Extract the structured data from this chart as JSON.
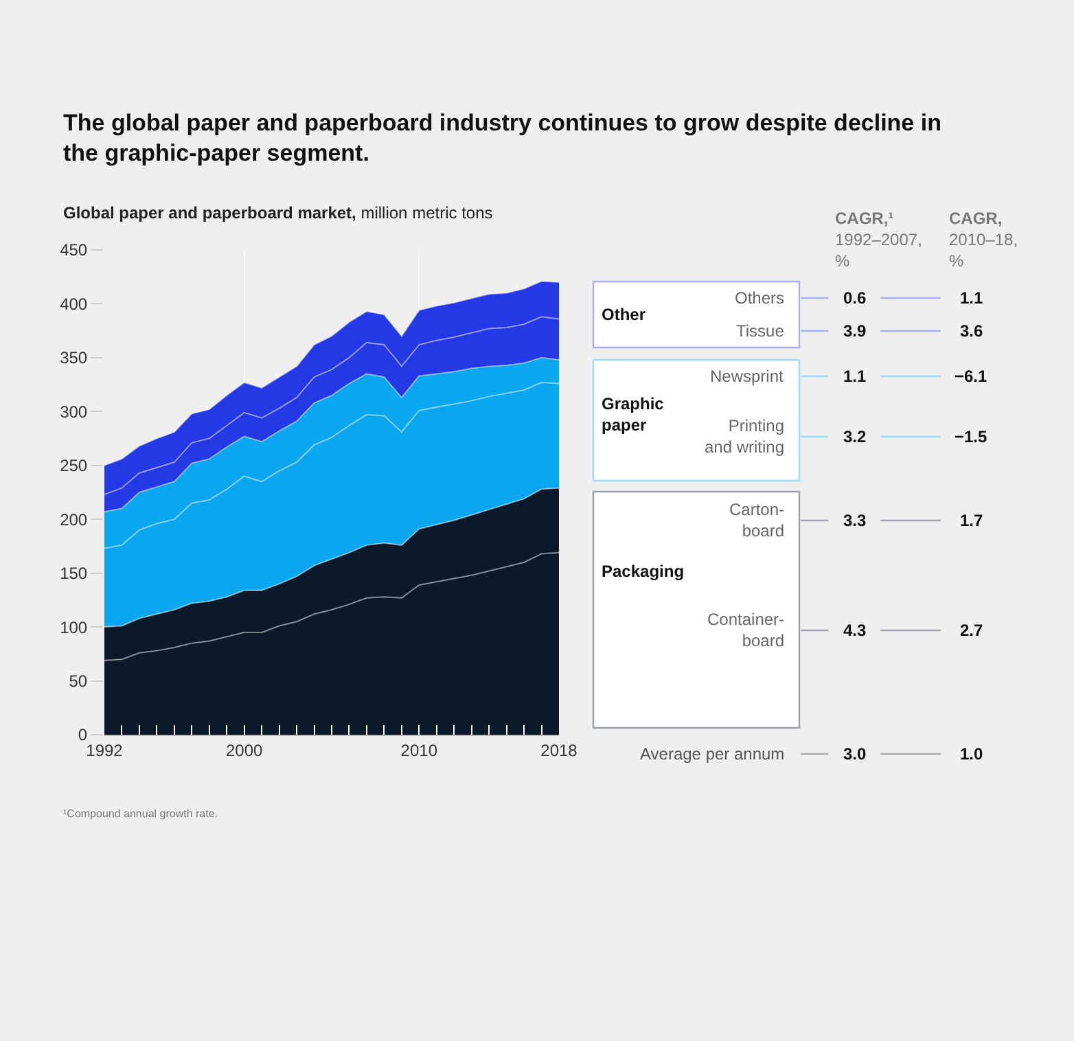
{
  "chart_data": {
    "type": "area",
    "stacked": true,
    "title": "The global paper and paperboard industry continues to grow despite decline in\nthe graphic-paper segment.",
    "ylabel": "Global paper and paperboard market, million metric tons",
    "x": [
      1992,
      1993,
      1994,
      1995,
      1996,
      1997,
      1998,
      1999,
      2000,
      2001,
      2002,
      2003,
      2004,
      2005,
      2006,
      2007,
      2008,
      2009,
      2010,
      2011,
      2012,
      2013,
      2014,
      2015,
      2016,
      2017,
      2018
    ],
    "series": [
      {
        "name": "Container-\nboard",
        "color": "#0b1a2b",
        "values": [
          69,
          70,
          76,
          78,
          81,
          85,
          87,
          91,
          95,
          95,
          101,
          105,
          112,
          116,
          121,
          127,
          128,
          127,
          139,
          142,
          145,
          148,
          152,
          156,
          160,
          168,
          169
        ]
      },
      {
        "name": "Carton-\nboard",
        "color": "#0b1a2b",
        "values": [
          31,
          31,
          32,
          34,
          35,
          37,
          37,
          37,
          39,
          39,
          39,
          42,
          45,
          47,
          48,
          49,
          50,
          49,
          52,
          53,
          54,
          56,
          57,
          58,
          59,
          60,
          60
        ]
      },
      {
        "name": "Printing\nand writing",
        "color": "#0aa6ef",
        "values": [
          73,
          75,
          82,
          84,
          84,
          93,
          94,
          100,
          106,
          101,
          105,
          106,
          112,
          113,
          118,
          121,
          118,
          105,
          110,
          109,
          108,
          106,
          105,
          103,
          101,
          99,
          97
        ]
      },
      {
        "name": "Newsprint",
        "color": "#0aa6ef",
        "values": [
          34,
          34,
          35,
          34,
          35,
          37,
          38,
          39,
          37,
          37,
          37,
          38,
          39,
          39,
          39,
          38,
          36,
          32,
          32,
          31,
          30,
          30,
          28,
          26,
          25,
          23,
          22
        ]
      },
      {
        "name": "Tissue",
        "color": "#2438e6",
        "values": [
          16,
          19,
          18,
          18,
          18,
          19,
          19,
          20,
          22,
          22,
          21,
          22,
          24,
          24,
          24,
          29,
          30,
          29,
          29,
          31,
          32,
          33,
          35,
          35,
          36,
          38,
          38
        ]
      },
      {
        "name": "Others",
        "color": "#2438e6",
        "values": [
          27,
          27,
          25,
          27,
          28,
          27,
          27,
          28,
          28,
          28,
          29,
          29,
          30,
          31,
          33,
          29,
          28,
          28,
          32,
          32,
          32,
          32,
          32,
          32,
          33,
          33,
          34
        ]
      }
    ],
    "xlim": [
      1992,
      2018
    ],
    "xticks": [
      1992,
      2000,
      2010,
      2018
    ],
    "ylim": [
      0,
      450
    ],
    "yticks": [
      0,
      50,
      100,
      150,
      200,
      250,
      300,
      350,
      400,
      450
    ],
    "grid": "x",
    "annotations": [
      "CAGR,¹\n1992–2007,\n%",
      "CAGR,\n2010–18,\n%",
      "Other",
      "Graphic\npaper",
      "Packaging",
      "Average per annum",
      "0.6",
      "1.1",
      "3.9",
      "3.6",
      "1.1",
      "−6.1",
      "3.2",
      "−1.5",
      "3.3",
      "1.7",
      "4.3",
      "2.7",
      "3.0",
      "1.0",
      "¹Compound annual growth rate."
    ]
  }
}
